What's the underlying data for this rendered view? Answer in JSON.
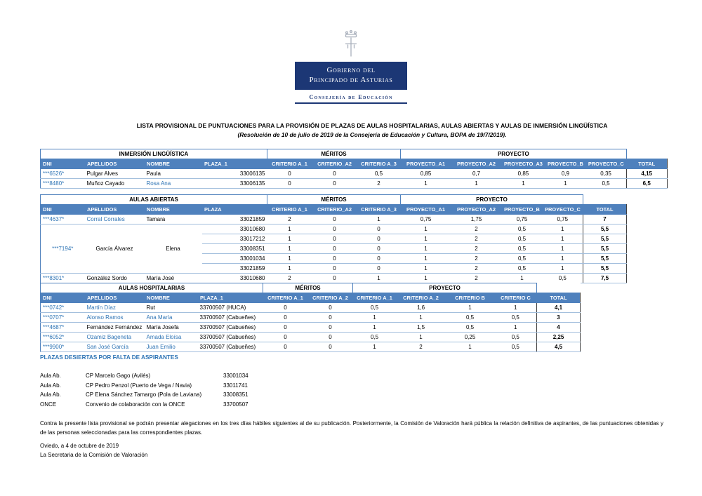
{
  "logo": {
    "line1": "Gobierno del",
    "line2": "Principado de Asturias",
    "department": "Consejería de Educación",
    "navy": "#1C3775"
  },
  "title": "LISTA PROVISIONAL DE PUNTUACIONES PARA LA PROVISIÓN DE PLAZAS DE AULAS HOSPITALARIAS, AULAS ABIERTAS Y AULAS DE INMERSIÓN LINGÜÍSTICA",
  "subtitle": "(Resolución de 10 de julio de 2019 de la Consejería de Educación y Cultura, BOPA de 19/7/2019).",
  "colors": {
    "header_fill": "#4F81BD",
    "row_separator": "#A3BFDD",
    "link_blue": "#2E74B5",
    "total_border": "#404040"
  },
  "tables": [
    {
      "name": "inmersion-linguistica",
      "banner": [
        {
          "label": "INMERSIÓN LINGÜÍSTICA",
          "span": 4
        },
        {
          "label": "MÉRITOS",
          "span": 3
        },
        {
          "label": "PROYECTO",
          "span": 5
        },
        {
          "label": "",
          "span": 1,
          "gap": true
        }
      ],
      "headers": [
        "DNI",
        "APELLIDOS",
        "NOMBRE",
        "PLAZA_1",
        "CRITERIO A_1",
        "CRITERIO_A2",
        "CRITERIO A_3",
        "PROYECTO_A1",
        "PROYECTO_A2",
        "PROYECTO_A3",
        "PROYECTO_B",
        "PROYECTO_C",
        "TOTAL"
      ],
      "header_left_count": 4,
      "col_types": [
        "dni",
        "apellidos",
        "nombre",
        "plaza",
        "score",
        "score",
        "score",
        "score",
        "score",
        "score",
        "score",
        "score",
        "total"
      ],
      "rows": [
        [
          "***6526*",
          "Pulgar Alves",
          "Paula",
          "33006135",
          "0",
          "0",
          "0,5",
          "0,85",
          "0,7",
          "0,85",
          "0,9",
          "0,35",
          "4,15"
        ],
        [
          "***8480*",
          "Muñoz Cayado",
          {
            "v": "Rosa Ana",
            "cl": "blue"
          },
          "33006135",
          "0",
          "0",
          "2",
          "1",
          "1",
          "1",
          "1",
          "0,5",
          "6,5"
        ]
      ]
    },
    {
      "name": "aulas-abiertas",
      "banner": [
        {
          "label": "AULAS ABIERTAS",
          "span": 4
        },
        {
          "label": "MÉRITOS",
          "span": 3
        },
        {
          "label": "PROYECTO",
          "span": 4
        },
        {
          "label": "",
          "span": 1,
          "gap": true
        }
      ],
      "headers": [
        "DNI",
        "APELLIDOS",
        "NOMBRE",
        "PLAZA",
        "CRITERIO A_1",
        "CRITERIO_A2",
        "CRITERIO A_3",
        "PROYECTO_A1",
        "PROYECTO_A2",
        "PROYECTO_B",
        "PROYECTO_C",
        "TOTAL"
      ],
      "header_left_count": 4,
      "col_types": [
        "dni",
        "apellidos",
        "nombre",
        "plaza",
        "score",
        "score",
        "score",
        "score",
        "score",
        "score",
        "score",
        "total"
      ],
      "rows": [
        [
          "***4637*",
          {
            "v": "Corral Corrales",
            "cl": "blue"
          },
          "Tamara",
          "33021859",
          "2",
          "0",
          "1",
          "0,75",
          "1,75",
          "0,75",
          "0,75",
          "7"
        ],
        [
          {
            "v": "***7194*",
            "span": 5,
            "cl": "ctr"
          },
          {
            "v": "García Álvarez",
            "span": 5,
            "cl": "ctr"
          },
          {
            "v": "Elena",
            "span": 5,
            "cl": "ctr"
          },
          "33010680",
          "1",
          "0",
          "0",
          "1",
          "2",
          "0,5",
          "1",
          "5,5"
        ],
        [
          null,
          null,
          null,
          "33017212",
          "1",
          "0",
          "0",
          "1",
          "2",
          "0,5",
          "1",
          "5,5"
        ],
        [
          null,
          null,
          null,
          "33008351",
          "1",
          "0",
          "0",
          "1",
          "2",
          "0,5",
          "1",
          "5,5"
        ],
        [
          null,
          null,
          null,
          "33001034",
          "1",
          "0",
          "0",
          "1",
          "2",
          "0,5",
          "1",
          "5,5"
        ],
        [
          null,
          null,
          null,
          "33021859",
          "1",
          "0",
          "0",
          "1",
          "2",
          "0,5",
          "1",
          "5,5"
        ],
        [
          "***8301*",
          "González Sordo",
          "María José",
          "33010680",
          "2",
          "0",
          "1",
          "1",
          "2",
          "1",
          "0,5",
          "7,5"
        ]
      ]
    },
    {
      "name": "aulas-hospitalarias",
      "banner": [
        {
          "label": "AULAS HOSPITALARIAS",
          "span": 4
        },
        {
          "label": "MÉRITOS",
          "span": 2
        },
        {
          "label": "PROYECTO",
          "span": 4
        },
        {
          "label": "",
          "span": 1,
          "gap": true
        }
      ],
      "headers": [
        "DNI",
        "APELLIDOS",
        "NOMBRE",
        "PLAZA_1",
        "CRITERIO A_1",
        "CRITERIO A_2",
        "CRITERIO A_1",
        "CRITERIO A_2",
        "CRITERIO B",
        "CRITERIO C",
        "TOTAL"
      ],
      "header_left_count": 4,
      "col_types": [
        "dni",
        "apellidos",
        "nombre",
        "plazal",
        "score",
        "score",
        "score",
        "score",
        "score",
        "score",
        "total"
      ],
      "rows": [
        [
          "***0742*",
          {
            "v": "Martín Díaz",
            "cl": "blue"
          },
          "Rut",
          "33700507 (HUCA)",
          "0",
          "0",
          "0,5",
          "1,6",
          "1",
          "1",
          "4,1"
        ],
        [
          "***0707*",
          {
            "v": "Alonso Ramos",
            "cl": "blue"
          },
          {
            "v": "Ana María",
            "cl": "blue"
          },
          "33700507 (Cabueñes)",
          "0",
          "0",
          "1",
          "1",
          "0,5",
          "0,5",
          "3"
        ],
        [
          "***4687*",
          "Fernández Fernández",
          "María Josefa",
          "33700507 (Cabueñes)",
          "0",
          "0",
          "1",
          "1,5",
          "0,5",
          "1",
          "4"
        ],
        [
          "***6052*",
          {
            "v": "Ozamiz Bageneta",
            "cl": "blue"
          },
          {
            "v": "Amada Eloísa",
            "cl": "blue"
          },
          "33700507 (Cabueñes)",
          "0",
          "0",
          "0,5",
          "1",
          "0,25",
          "0,5",
          "2,25"
        ],
        [
          "***9900*",
          {
            "v": "San José García",
            "cl": "blue"
          },
          {
            "v": "Juan Emilio",
            "cl": "blue"
          },
          "33700507 (Cabueñes)",
          "0",
          "0",
          "1",
          "2",
          "1",
          "0,5",
          "4,5"
        ]
      ]
    }
  ],
  "vacant": {
    "heading": "PLAZAS DESIERTAS POR FALTA DE ASPIRANTES",
    "rows": [
      {
        "type": "Aula Ab.",
        "desc": "CP Marcelo Gago (Avilés)",
        "code": "33001034"
      },
      {
        "type": "Aula Ab.",
        "desc": "CP Pedro Penzol (Puerto de Vega / Navia)",
        "code": "33011741"
      },
      {
        "type": "Aula Ab.",
        "desc": "CP Elena Sánchez Tamargo (Pola de Laviana)",
        "code": "33008351"
      },
      {
        "type": "ONCE",
        "desc": "Convenio de colaboración con la ONCE",
        "code": "33700507"
      }
    ]
  },
  "footer": {
    "paragraph": "Contra la presente lista provisional se podrán presentar alegaciones en los tres días hábiles siguientes al de su publicación. Posteriormente, la Comisión de Valoración hará pública la relación definitiva de aspirantes, de las puntuaciones obtenidas y de las personas seleccionadas para las correspondientes plazas.",
    "place_date": "Oviedo, a 4 de octubre de 2019",
    "signature": "La Secretaria de la Comisión de Valoración"
  }
}
